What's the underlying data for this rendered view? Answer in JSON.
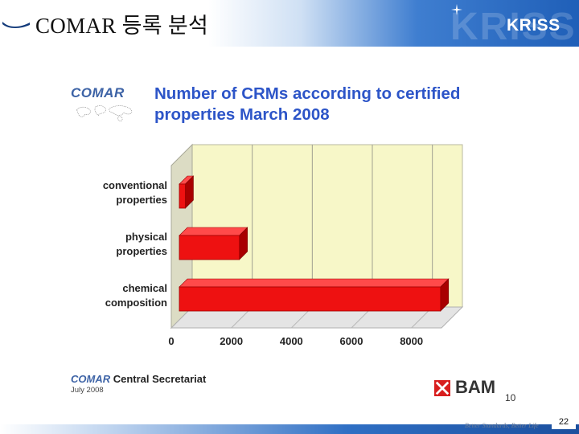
{
  "header": {
    "title": "COMAR 등록 분석",
    "logo_text": "KRISS",
    "watermark_text": "KRISS"
  },
  "slide": {
    "comar_logo": "COMAR",
    "footer_brand": "COMAR",
    "footer_text": "Central Secretariat",
    "footer_date": "July 2008",
    "bam_logo": "BAM",
    "inner_page_number": "10"
  },
  "footer": {
    "tagline": "Better Standards, Better Life",
    "page_number": "22"
  },
  "colors": {
    "title_blue": "#2d55c8",
    "bar_red": "#ee1111",
    "bar_side": "#a80000",
    "plot_bg": "#f7f7c8"
  },
  "chart_data": {
    "type": "bar",
    "orientation": "horizontal",
    "title": "Number of CRMs according to certified properties March 2008",
    "categories": [
      "conventional properties",
      "physical properties",
      "chemical composition"
    ],
    "category_lines": [
      [
        "conventional",
        "properties"
      ],
      [
        "physical",
        "properties"
      ],
      [
        "chemical",
        "composition"
      ]
    ],
    "values": [
      200,
      2000,
      8700
    ],
    "xlim": [
      0,
      9000
    ],
    "xticks": [
      0,
      2000,
      4000,
      6000,
      8000
    ],
    "xlabel": "",
    "ylabel": "",
    "grid": true,
    "style": "3d"
  }
}
